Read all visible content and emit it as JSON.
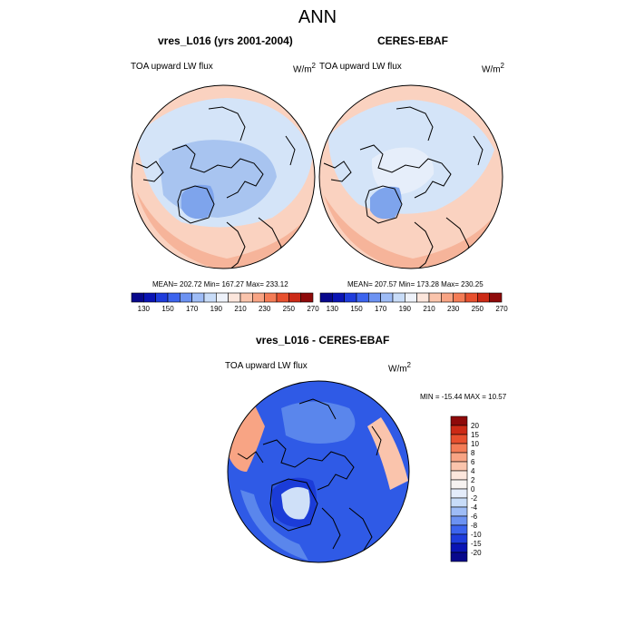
{
  "figure": {
    "season": "ANN"
  },
  "panels": [
    {
      "title": "vres_L016 (yrs 2001-2004)",
      "left_label": "TOA upward LW flux",
      "units": "W/m",
      "units_exp": "2",
      "stats": "MEAN= 202.72  Min= 167.27  Max= 233.12"
    },
    {
      "title": "CERES-EBAF",
      "left_label": "TOA upward LW flux",
      "units": "W/m",
      "units_exp": "2",
      "stats": "MEAN= 207.57  Min= 173.28  Max= 230.25"
    }
  ],
  "difference": {
    "title": "vres_L016 - CERES-EBAF",
    "left_label": "TOA upward LW flux",
    "units": "W/m",
    "units_exp": "2",
    "stats": "MIN = -15.44 MAX =  10.57"
  },
  "colorbar_top": {
    "labels": [
      "130",
      "150",
      "170",
      "190",
      "210",
      "230",
      "250",
      "270"
    ],
    "colors": [
      "#08088c",
      "#0a14b4",
      "#1e3cdc",
      "#3c64ee",
      "#6c92f2",
      "#9ebcf6",
      "#c8dcf8",
      "#eef2fa",
      "#fce6dc",
      "#fac4ac",
      "#f8a484",
      "#f47c56",
      "#e8502e",
      "#cc2a16",
      "#8e0a0a"
    ]
  },
  "colorbar_diff": {
    "labels": [
      "20",
      "15",
      "10",
      "8",
      "6",
      "4",
      "2",
      "0",
      "-2",
      "-4",
      "-6",
      "-8",
      "-10",
      "-15",
      "-20"
    ],
    "colors": [
      "#8e0a0a",
      "#cc2a16",
      "#e8502e",
      "#f47c56",
      "#f8a484",
      "#fac4ac",
      "#fce6dc",
      "#f6f2f0",
      "#e4ecfa",
      "#c8dcf8",
      "#9ebcf6",
      "#6c92f2",
      "#3c64ee",
      "#1e3cdc",
      "#0a14b4",
      "#08088c"
    ]
  },
  "map_colors": {
    "bg_light_red": "#fad2c0",
    "mid_red": "#f6b49a",
    "light_blue": "#d4e4f8",
    "mid_blue": "#a8c4f0",
    "blue": "#7ea4ec",
    "diff_blue": "#2f5ae6",
    "diff_dark_blue": "#1b3cd8",
    "diff_light_blue": "#5a86ec"
  }
}
